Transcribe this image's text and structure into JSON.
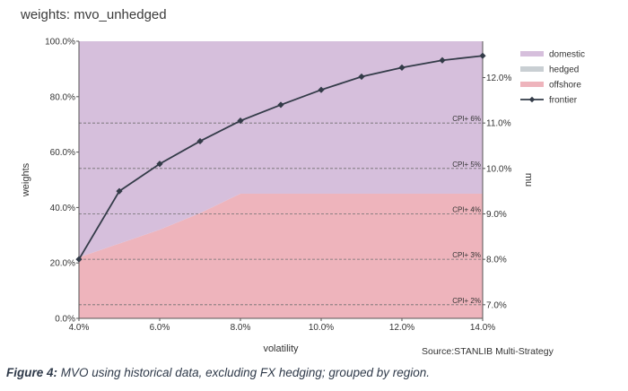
{
  "chart_data": {
    "type": "area",
    "title": "weights: mvo_unhedged",
    "xlabel": "volatility",
    "ylabel": "weights",
    "y2label": "mu",
    "x": [
      4,
      5,
      6,
      7,
      8,
      9,
      10,
      11,
      12,
      13,
      14
    ],
    "x_ticks": [
      "4.0%",
      "6.0%",
      "8.0%",
      "10.0%",
      "12.0%",
      "14.0%"
    ],
    "y_ticks": [
      "0.0%",
      "20.0%",
      "40.0%",
      "60.0%",
      "80.0%",
      "100.0%"
    ],
    "y2_ticks": [
      "7.0%",
      "8.0%",
      "9.0%",
      "10.0%",
      "11.0%",
      "12.0%"
    ],
    "xlim": [
      4,
      14
    ],
    "ylim": [
      0,
      100
    ],
    "y2lim": [
      6.7,
      12.8
    ],
    "series": [
      {
        "name": "domestic",
        "axis": "left",
        "values": [
          78,
          73,
          68,
          62,
          55,
          55,
          55,
          55,
          55,
          55,
          55
        ],
        "color": "#d6bfdc"
      },
      {
        "name": "hedged",
        "axis": "left",
        "values": [
          0,
          0,
          0,
          0,
          0,
          0,
          0,
          0,
          0,
          0,
          0
        ],
        "color": "#c9cfd3"
      },
      {
        "name": "offshore",
        "axis": "left",
        "values": [
          22,
          27,
          32,
          38,
          45,
          45,
          45,
          45,
          45,
          45,
          45
        ],
        "color": "#eeb4bc"
      },
      {
        "name": "frontier",
        "axis": "right",
        "values": [
          8.0,
          9.5,
          10.1,
          10.6,
          11.05,
          11.4,
          11.73,
          12.02,
          12.22,
          12.38,
          12.48
        ],
        "color": "#333b48",
        "marker": "diamond"
      }
    ],
    "reference_lines": [
      {
        "label": "CPI+ 6%",
        "value": 11.0
      },
      {
        "label": "CPI+ 5%",
        "value": 10.0
      },
      {
        "label": "CPI+ 4%",
        "value": 9.0
      },
      {
        "label": "CPI+ 3%",
        "value": 8.0
      },
      {
        "label": "CPI+ 2%",
        "value": 7.0
      }
    ],
    "legend_position": "top-right",
    "grid": false
  },
  "source": "Source:STANLIB Multi-Strategy",
  "caption": {
    "label": "Figure 4:",
    "text": " MVO using historical data, excluding FX hedging; grouped by region."
  }
}
